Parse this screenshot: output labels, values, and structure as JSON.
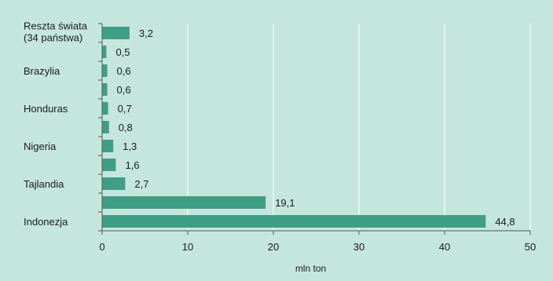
{
  "chart_data": {
    "type": "bar",
    "orientation": "horizontal",
    "title": "",
    "xlabel": "mln ton",
    "ylabel": "",
    "xlim": [
      0,
      50
    ],
    "xticks": [
      0,
      10,
      20,
      30,
      40,
      50
    ],
    "grid": true,
    "legend": "none",
    "bar_color": "#3f9e86",
    "background": "#c5e6dd",
    "categories_top_to_bottom": [
      {
        "label": [
          "Reszta świata",
          "(34 państwa)"
        ],
        "value": 3.2,
        "value_text": "3,2"
      },
      {
        "label": [],
        "value": 0.5,
        "value_text": "0,5"
      },
      {
        "label": [
          "Brazylia"
        ],
        "value": 0.6,
        "value_text": "0,6"
      },
      {
        "label": [],
        "value": 0.6,
        "value_text": "0,6"
      },
      {
        "label": [
          "Honduras"
        ],
        "value": 0.7,
        "value_text": "0,7"
      },
      {
        "label": [],
        "value": 0.8,
        "value_text": "0,8"
      },
      {
        "label": [
          "Nigeria"
        ],
        "value": 1.3,
        "value_text": "1,3"
      },
      {
        "label": [],
        "value": 1.6,
        "value_text": "1,6"
      },
      {
        "label": [
          "Tajlandia"
        ],
        "value": 2.7,
        "value_text": "2,7"
      },
      {
        "label": [],
        "value": 19.1,
        "value_text": "19,1"
      },
      {
        "label": [
          "Indonezja"
        ],
        "value": 44.8,
        "value_text": "44,8"
      }
    ]
  }
}
